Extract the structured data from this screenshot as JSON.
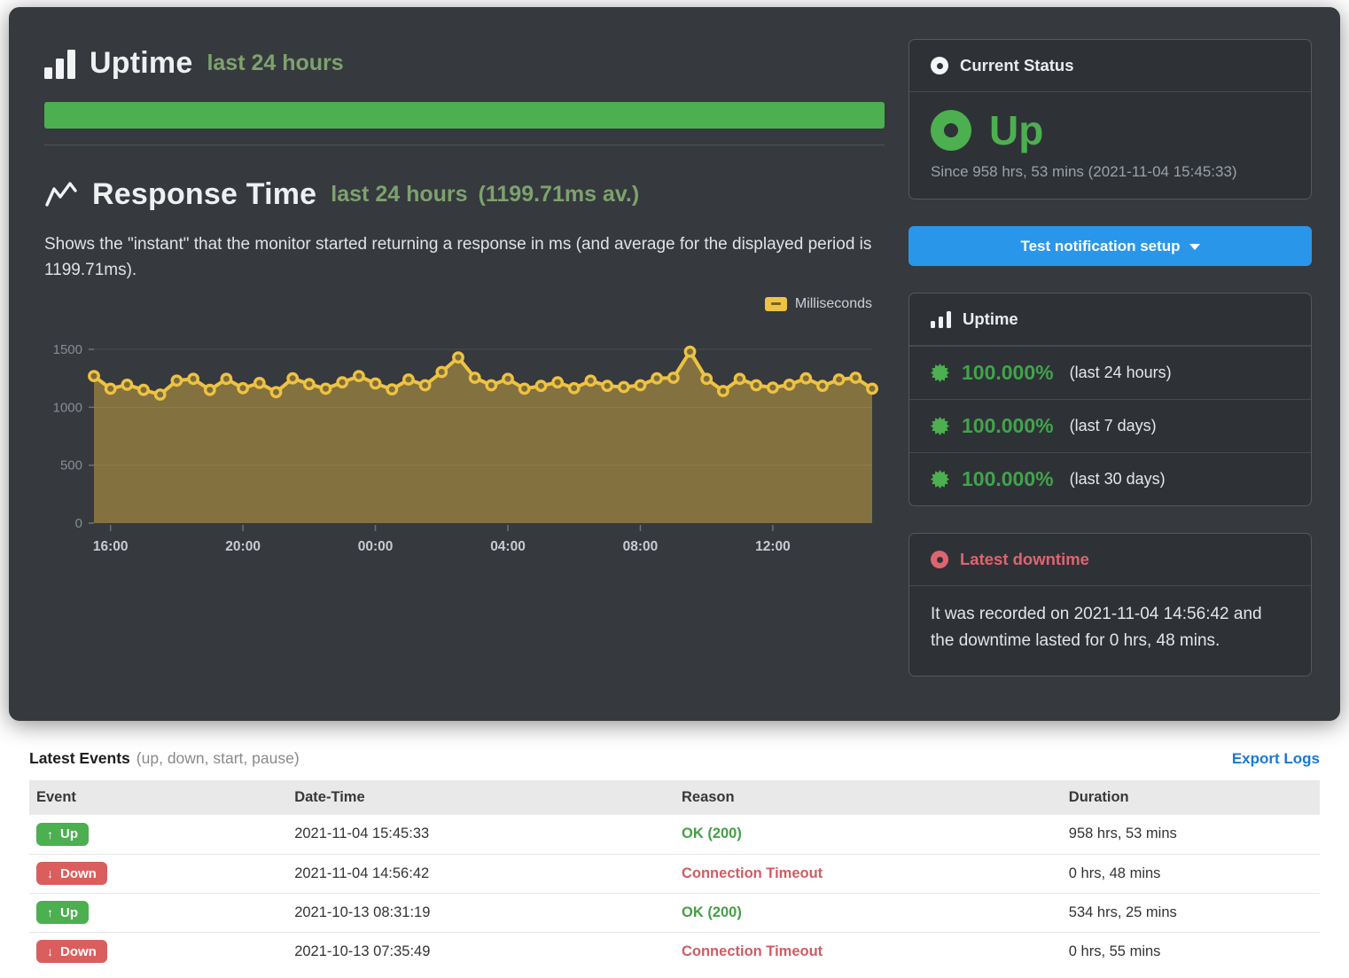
{
  "uptime_section": {
    "title": "Uptime",
    "subtitle": "last 24 hours"
  },
  "response_section": {
    "title": "Response Time",
    "subtitle": "last 24 hours",
    "average": "(1199.71ms av.)",
    "description": "Shows the \"instant\" that the monitor started returning a response in ms (and average for the displayed period is 1199.71ms)."
  },
  "chart_data": {
    "type": "area",
    "title": "Response Time last 24 hours",
    "legend": "Milliseconds",
    "legend_position": "top-right",
    "grid": true,
    "ylim": [
      0,
      1500
    ],
    "y_ticks": [
      0,
      500,
      1000,
      1500
    ],
    "x_ticks": [
      "16:00",
      "20:00",
      "00:00",
      "04:00",
      "08:00",
      "12:00"
    ],
    "x_tick_indices": [
      1,
      9,
      17,
      25,
      33,
      41
    ],
    "average_ms": 1199.71,
    "values": [
      1270,
      1160,
      1195,
      1150,
      1110,
      1230,
      1245,
      1150,
      1245,
      1165,
      1210,
      1130,
      1250,
      1200,
      1160,
      1215,
      1270,
      1205,
      1155,
      1240,
      1190,
      1305,
      1430,
      1255,
      1190,
      1245,
      1160,
      1185,
      1215,
      1165,
      1230,
      1185,
      1175,
      1190,
      1250,
      1255,
      1480,
      1245,
      1140,
      1245,
      1190,
      1170,
      1195,
      1250,
      1185,
      1240,
      1255,
      1160
    ],
    "line_color": "#eec243",
    "fill_color": "rgba(238,194,67,0.42)",
    "marker_fill": "#7d6c39"
  },
  "status_card": {
    "title": "Current Status",
    "status": "Up",
    "since": "Since 958 hrs, 53 mins (2021-11-04 15:45:33)"
  },
  "notification_button": {
    "label": "Test notification setup"
  },
  "uptime_card": {
    "title": "Uptime",
    "rows": [
      {
        "value": "100.000%",
        "label": "(last 24 hours)"
      },
      {
        "value": "100.000%",
        "label": "(last 7 days)"
      },
      {
        "value": "100.000%",
        "label": "(last 30 days)"
      }
    ]
  },
  "downtime_card": {
    "title": "Latest downtime",
    "text": "It was recorded on 2021-11-04 14:56:42 and the downtime lasted for 0 hrs, 48 mins."
  },
  "events": {
    "title": "Latest Events",
    "subtitle": "(up, down, start, pause)",
    "export_label": "Export Logs",
    "columns": [
      "Event",
      "Date-Time",
      "Reason",
      "Duration"
    ],
    "rows": [
      {
        "type": "up",
        "event": "Up",
        "datetime": "2021-11-04 15:45:33",
        "reason": "OK (200)",
        "reason_type": "ok",
        "duration": "958 hrs, 53 mins"
      },
      {
        "type": "down",
        "event": "Down",
        "datetime": "2021-11-04 14:56:42",
        "reason": "Connection Timeout",
        "reason_type": "error",
        "duration": "0 hrs, 48 mins"
      },
      {
        "type": "up",
        "event": "Up",
        "datetime": "2021-10-13 08:31:19",
        "reason": "OK (200)",
        "reason_type": "ok",
        "duration": "534 hrs, 25 mins"
      },
      {
        "type": "down",
        "event": "Down",
        "datetime": "2021-10-13 07:35:49",
        "reason": "Connection Timeout",
        "reason_type": "error",
        "duration": "0 hrs, 55 mins"
      }
    ]
  },
  "colors": {
    "up_green": "#4caf50",
    "button_blue": "#2a96ea",
    "downtime_red": "#dd6570",
    "chart_gold": "#eec243"
  }
}
